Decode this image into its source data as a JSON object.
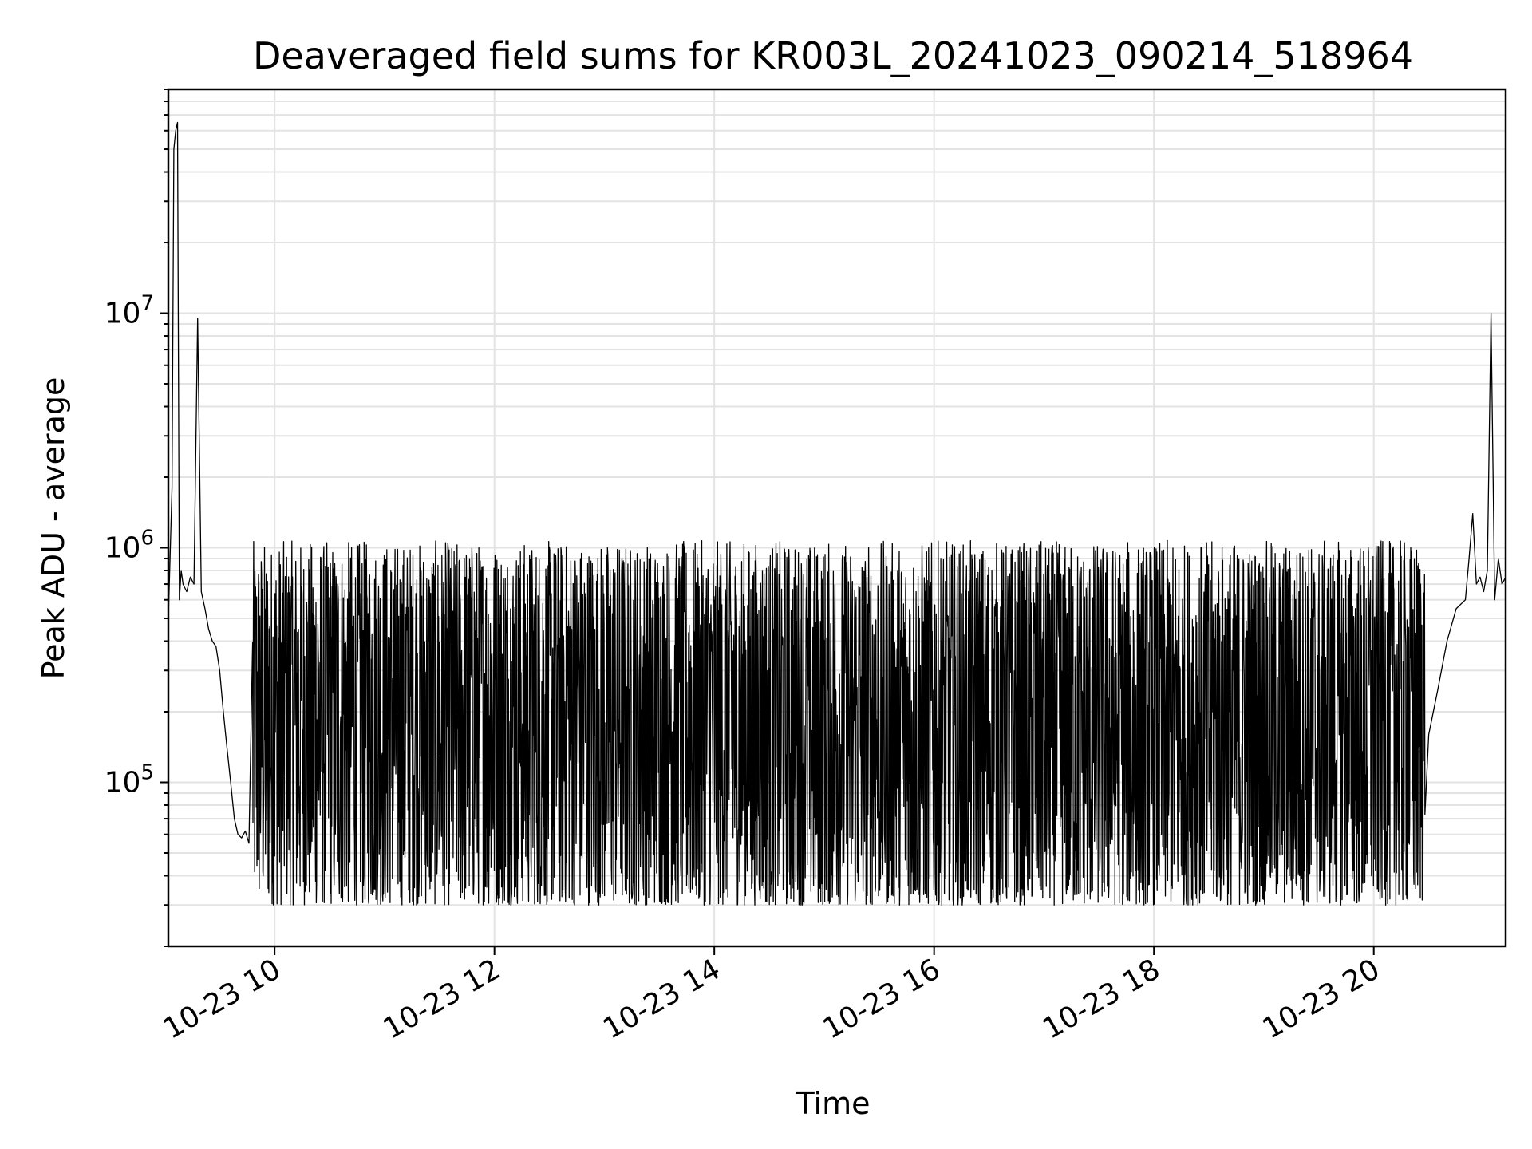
{
  "chart_data": {
    "type": "line",
    "title": "Deaveraged field sums for KR003L_20241023_090214_518964",
    "xlabel": "Time",
    "ylabel": "Peak ADU - average",
    "y_scale": "log",
    "ylim": [
      20000,
      90000000
    ],
    "xlim": [
      "2024-10-23 09:02",
      "2024-10-23 21:12"
    ],
    "grid": true,
    "x_ticks": [
      {
        "time": "2024-10-23 10:00",
        "label": "10-23 10"
      },
      {
        "time": "2024-10-23 12:00",
        "label": "10-23 12"
      },
      {
        "time": "2024-10-23 14:00",
        "label": "10-23 14"
      },
      {
        "time": "2024-10-23 16:00",
        "label": "10-23 16"
      },
      {
        "time": "2024-10-23 18:00",
        "label": "10-23 18"
      },
      {
        "time": "2024-10-23 20:00",
        "label": "10-23 20"
      }
    ],
    "y_ticks": [
      {
        "value": 100000,
        "base": "10",
        "exp": "5"
      },
      {
        "value": 1000000,
        "base": "10",
        "exp": "6"
      },
      {
        "value": 10000000,
        "base": "10",
        "exp": "7"
      }
    ],
    "series": [
      {
        "color": "#000000",
        "x": [
          "2024-10-23 09:02",
          "2024-10-23 09:04",
          "2024-10-23 09:05",
          "2024-10-23 09:06",
          "2024-10-23 09:07",
          "2024-10-23 09:08",
          "2024-10-23 09:09",
          "2024-10-23 09:10",
          "2024-10-23 09:12",
          "2024-10-23 09:14",
          "2024-10-23 09:16",
          "2024-10-23 09:18",
          "2024-10-23 09:20",
          "2024-10-23 09:22",
          "2024-10-23 09:24",
          "2024-10-23 09:26",
          "2024-10-23 09:28",
          "2024-10-23 09:30",
          "2024-10-23 09:32",
          "2024-10-23 09:34",
          "2024-10-23 09:36",
          "2024-10-23 09:38",
          "2024-10-23 09:40",
          "2024-10-23 09:42",
          "2024-10-23 09:44",
          "2024-10-23 09:46",
          "2024-10-23 09:50",
          "2024-10-23 09:55",
          "2024-10-23 20:25",
          "2024-10-23 20:30",
          "2024-10-23 20:35",
          "2024-10-23 20:40",
          "2024-10-23 20:45",
          "2024-10-23 20:50",
          "2024-10-23 20:52",
          "2024-10-23 20:54",
          "2024-10-23 20:56",
          "2024-10-23 20:58",
          "2024-10-23 21:00",
          "2024-10-23 21:02",
          "2024-10-23 21:04",
          "2024-10-23 21:06",
          "2024-10-23 21:08",
          "2024-10-23 21:10",
          "2024-10-23 21:12"
        ],
        "y": [
          500000,
          1800000,
          50000000,
          60000000,
          65000000,
          600000,
          800000,
          700000,
          650000,
          750000,
          700000,
          9500000,
          650000,
          550000,
          450000,
          400000,
          380000,
          300000,
          200000,
          140000,
          100000,
          70000,
          60000,
          58000,
          62000,
          55000,
          60000,
          65000,
          120000,
          160000,
          250000,
          400000,
          550000,
          600000,
          900000,
          1400000,
          700000,
          750000,
          650000,
          800000,
          10000000,
          600000,
          900000,
          700000,
          750000
        ]
      }
    ],
    "noise_band": {
      "x_range": [
        "2024-10-23 09:48",
        "2024-10-23 20:28"
      ],
      "min_y": 30000,
      "max_y": 1200000
    }
  }
}
